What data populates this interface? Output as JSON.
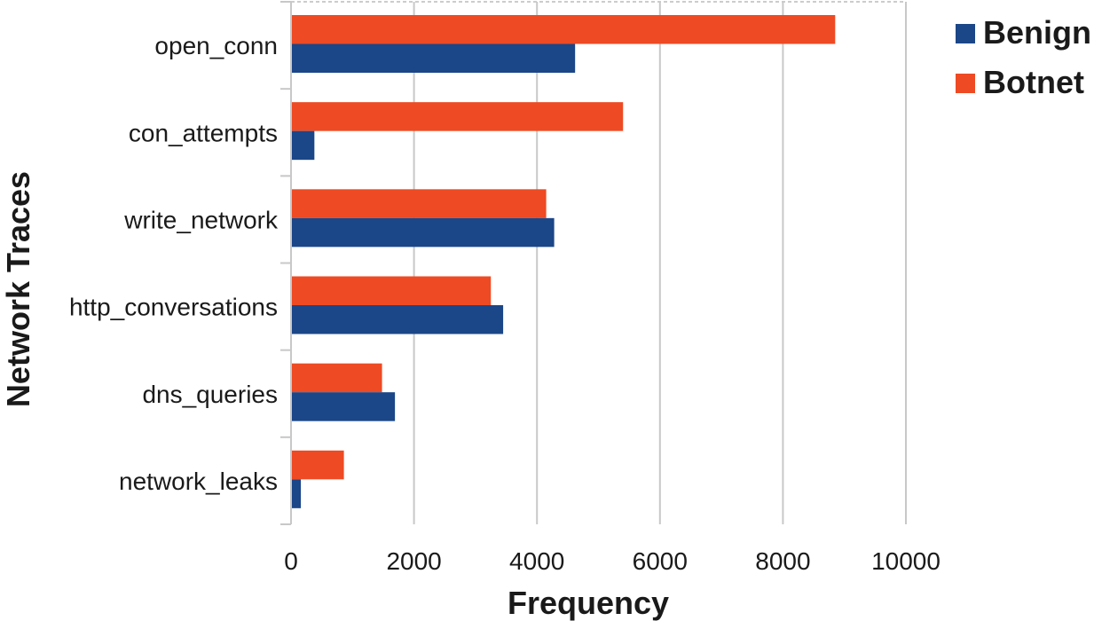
{
  "chart_data": {
    "type": "bar",
    "orientation": "horizontal",
    "categories": [
      "open_conn",
      "con_attempts",
      "write_network",
      "http_conversations",
      "dns_queries",
      "network_leaks"
    ],
    "series": [
      {
        "name": "Botnet",
        "color": "#ee4a23",
        "values": [
          8850,
          5400,
          4150,
          3250,
          1480,
          860
        ]
      },
      {
        "name": "Benign",
        "color": "#1b4688",
        "values": [
          4620,
          380,
          4280,
          3450,
          1690,
          160
        ]
      }
    ],
    "xlabel": "Frequency",
    "ylabel": "Network Traces",
    "xlim": [
      0,
      10000
    ],
    "xticks": [
      "0",
      "2000",
      "4000",
      "6000",
      "8000",
      "10000"
    ],
    "grid": "vertical",
    "legend": {
      "position": "top-right",
      "items": [
        "Benign",
        "Botnet"
      ]
    }
  }
}
